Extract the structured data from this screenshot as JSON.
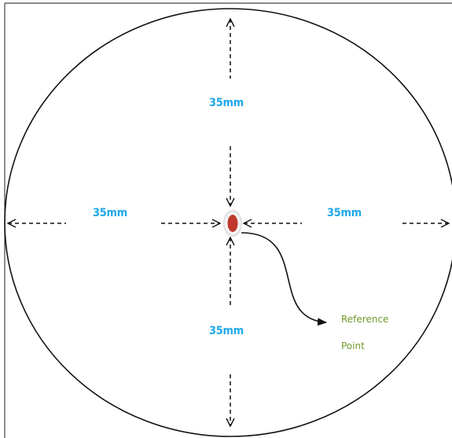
{
  "diagram": {
    "labels": {
      "top": "35mm",
      "left": "35mm",
      "right": "35mm",
      "bottom": "35mm"
    },
    "reference": {
      "line1": "Reference",
      "line2": "Point"
    },
    "colors": {
      "dimension_text": "#1fa8e8",
      "reference_text": "#6f9a2a",
      "marker": "#c0392b",
      "lines": "#111111",
      "frame": "#444444"
    }
  }
}
